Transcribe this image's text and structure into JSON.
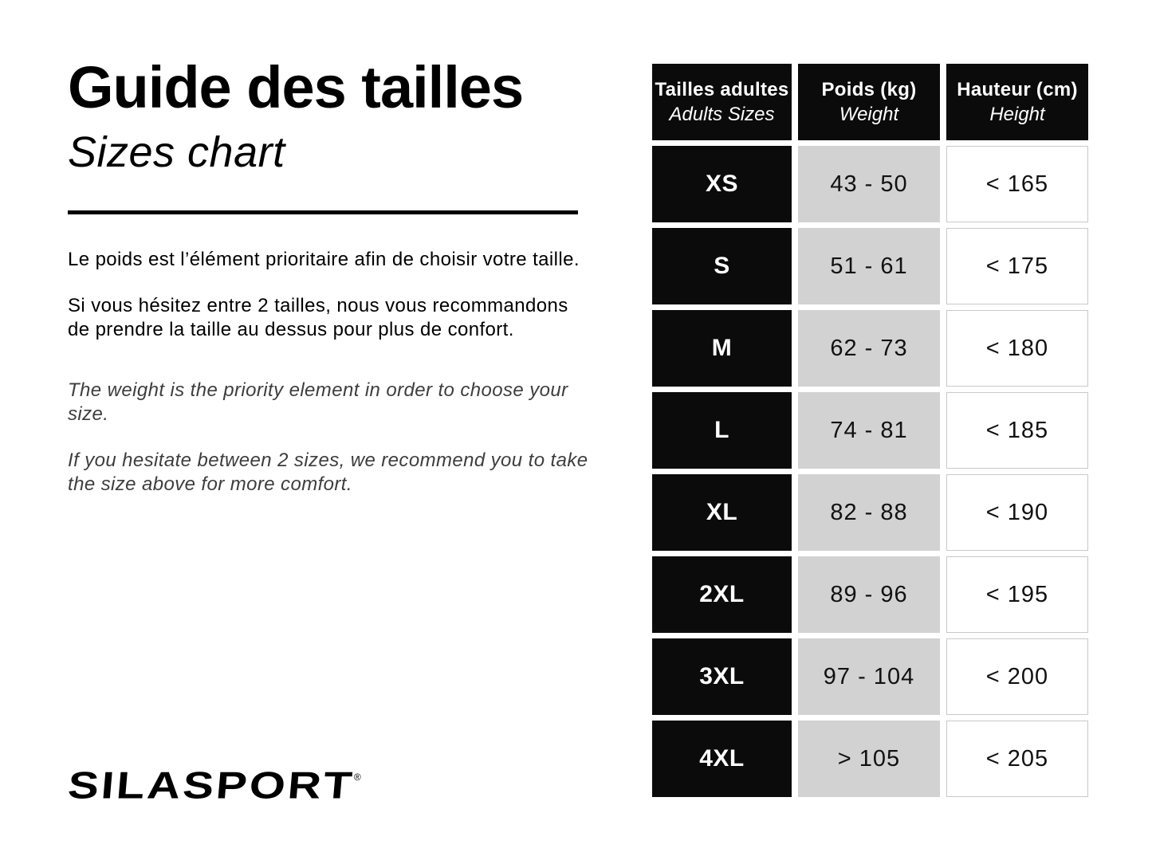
{
  "header": {
    "title_fr": "Guide des tailles",
    "title_en": "Sizes chart"
  },
  "intro": {
    "fr_weight": "Le poids est l’élément prioritaire afin de choisir votre taille.",
    "fr_hesitate": "Si vous hésitez entre 2 tailles, nous vous recommandons\nde prendre la taille au dessus pour plus de confort.",
    "en_weight": "The weight is the priority element in order to choose your size.",
    "en_hesitate": "If you hesitate between 2 sizes, we recommend you to take\nthe size above for more comfort."
  },
  "table": {
    "columns": [
      {
        "title": "Tailles adultes",
        "subtitle": "Adults Sizes"
      },
      {
        "title": "Poids (kg)",
        "subtitle": "Weight"
      },
      {
        "title": "Hauteur (cm)",
        "subtitle": "Height"
      }
    ],
    "rows": [
      {
        "size": "XS",
        "weight": "43 - 50",
        "height": "< 165"
      },
      {
        "size": "S",
        "weight": "51 - 61",
        "height": "< 175"
      },
      {
        "size": "M",
        "weight": "62 - 73",
        "height": "< 180"
      },
      {
        "size": "L",
        "weight": "74 - 81",
        "height": "< 185"
      },
      {
        "size": "XL",
        "weight": "82 - 88",
        "height": "< 190"
      },
      {
        "size": "2XL",
        "weight": "89 - 96",
        "height": "< 195"
      },
      {
        "size": "3XL",
        "weight": "97 - 104",
        "height": "< 200"
      },
      {
        "size": "4XL",
        "weight": "> 105",
        "height": "< 205"
      }
    ]
  },
  "footer": {
    "brand": "SILASPORT",
    "registered": "®"
  },
  "colors": {
    "cell_black": "#0b0b0b",
    "cell_gray": "#d2d2d2",
    "white_cell_border": "#c9c9c9",
    "text_black": "#000000"
  }
}
